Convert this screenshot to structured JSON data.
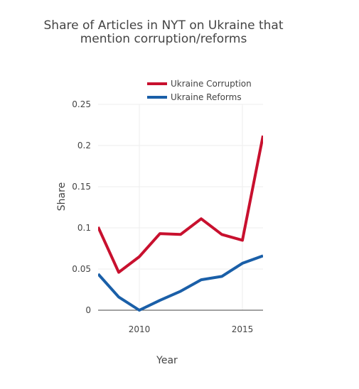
{
  "chart_data": {
    "type": "line",
    "title_lines": [
      "Share of Articles in NYT on Ukraine that",
      "mention corruption/reforms"
    ],
    "xlabel": "Year",
    "ylabel": "Share",
    "xlim": [
      2008,
      2016
    ],
    "ylim": [
      0,
      0.25
    ],
    "x_ticks": [
      2010,
      2015
    ],
    "x_tick_labels": [
      "2010",
      "2015"
    ],
    "y_ticks": [
      0,
      0.05,
      0.1,
      0.15,
      0.2,
      0.25
    ],
    "y_tick_labels": [
      "0",
      "0.05",
      "0.1",
      "0.15",
      "0.2",
      "0.25"
    ],
    "grid": true,
    "legend_position": "top-right",
    "x": [
      2008,
      2009,
      2010,
      2011,
      2012,
      2013,
      2014,
      2015,
      2016
    ],
    "series": [
      {
        "name": "Ukraine Corruption",
        "color": "#c8102e",
        "values": [
          0.101,
          0.046,
          0.065,
          0.093,
          0.092,
          0.111,
          0.092,
          0.085,
          0.212
        ]
      },
      {
        "name": "Ukraine Reforms",
        "color": "#1a5fa8",
        "values": [
          0.044,
          0.016,
          0.0,
          0.012,
          0.023,
          0.037,
          0.041,
          0.057,
          0.066
        ]
      }
    ]
  }
}
